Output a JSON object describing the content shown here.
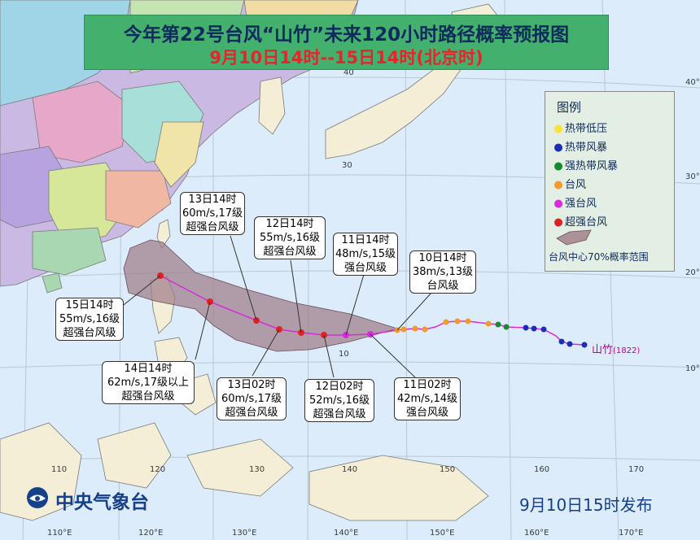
{
  "title": "今年第22号台风“山竹”未来120小时路径概率预报图",
  "subtitle": "9月10日14时--15日14时(北京时)",
  "legend": {
    "title": "图例",
    "items": [
      {
        "label": "热带低压",
        "color": "#f5e43a"
      },
      {
        "label": "热带风暴",
        "color": "#1a2fb8"
      },
      {
        "label": "强热带风暴",
        "color": "#178a2c"
      },
      {
        "label": "台风",
        "color": "#f39a2a"
      },
      {
        "label": "强台风",
        "color": "#d82ad8"
      },
      {
        "label": "超强台风",
        "color": "#e12222"
      }
    ],
    "area_label": "台风中心70%概率范围"
  },
  "typhoon_label": "山竹",
  "typhoon_id": "(1822)",
  "callouts": [
    {
      "time": "13日14时",
      "wind": "60m/s,17级",
      "level": "超强台风级"
    },
    {
      "time": "12日14时",
      "wind": "55m/s,16级",
      "level": "超强台风级"
    },
    {
      "time": "11日14时",
      "wind": "48m/s,15级",
      "level": "强台风级"
    },
    {
      "time": "10日14时",
      "wind": "38m/s,13级",
      "level": "台风级"
    },
    {
      "time": "15日14时",
      "wind": "55m/s,16级",
      "level": "超强台风级"
    },
    {
      "time": "14日14时",
      "wind": "62m/s,17级以上",
      "level": "超强台风级"
    },
    {
      "time": "13日02时",
      "wind": "60m/s,17级",
      "level": "超强台风级"
    },
    {
      "time": "12日02时",
      "wind": "52m/s,16级",
      "level": "超强台风级"
    },
    {
      "time": "11日02时",
      "wind": "42m/s,14级",
      "level": "强台风级"
    }
  ],
  "lon_labels": [
    "110",
    "120",
    "130",
    "140",
    "150",
    "160",
    "170"
  ],
  "bottom_lon_labels": [
    "110°E",
    "120°E",
    "130°E",
    "140°E",
    "150°E",
    "160°E",
    "170°E"
  ],
  "lat_labels": [
    "10",
    "20",
    "30",
    "40"
  ],
  "right_lat_labels": [
    "10°N",
    "20°N",
    "30°N",
    "40°N"
  ],
  "footer_agency": "中央气象台",
  "footer_issue": "9月10日15时发布",
  "colors": {
    "sea": "#dcecfa",
    "track": "#d82ad8",
    "cone": "#9c7a86",
    "title_bg": "#43b16d",
    "title_text": "#0f2a5c",
    "subtitle_text": "#e6242c"
  }
}
